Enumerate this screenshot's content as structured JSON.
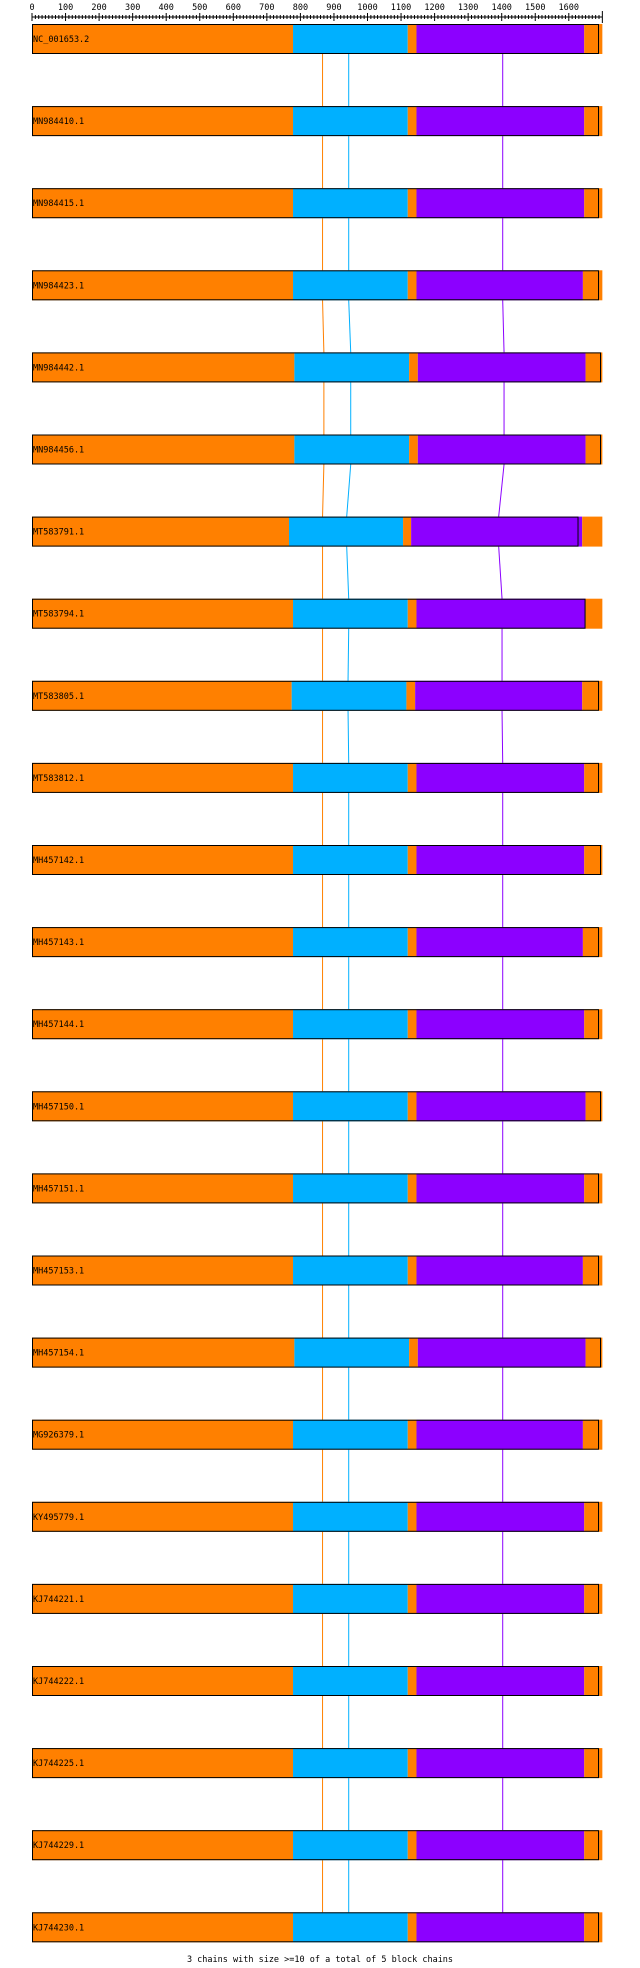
{
  "axis": {
    "min": 0,
    "max": 1700,
    "ticks": [
      "0",
      "100",
      "200",
      "300",
      "400",
      "500",
      "600",
      "700",
      "800",
      "900",
      "1000",
      "1100",
      "1200",
      "1300",
      "1400",
      "1500",
      "1600"
    ]
  },
  "colors": {
    "orange": "#ff8000",
    "blue": "#00b0ff",
    "purple": "#8c00ff",
    "outline": "#000000"
  },
  "rows": [
    {
      "label": "NC_001653.2",
      "bounds": [
        0,
        1690
      ],
      "segs": [
        [
          0,
          778,
          "orange"
        ],
        [
          778,
          1120,
          "blue"
        ],
        [
          1120,
          1146,
          "orange"
        ],
        [
          1146,
          1646,
          "purple"
        ],
        [
          1646,
          1700,
          "orange"
        ]
      ],
      "links": [
        866,
        944,
        1403
      ]
    },
    {
      "label": "MN984410.1",
      "bounds": [
        0,
        1690
      ],
      "segs": [
        [
          0,
          778,
          "orange"
        ],
        [
          778,
          1120,
          "blue"
        ],
        [
          1120,
          1146,
          "orange"
        ],
        [
          1146,
          1646,
          "purple"
        ],
        [
          1646,
          1700,
          "orange"
        ]
      ],
      "links": [
        866,
        944,
        1403
      ]
    },
    {
      "label": "MN984415.1",
      "bounds": [
        0,
        1690
      ],
      "segs": [
        [
          0,
          778,
          "orange"
        ],
        [
          778,
          1120,
          "blue"
        ],
        [
          1120,
          1146,
          "orange"
        ],
        [
          1146,
          1646,
          "purple"
        ],
        [
          1646,
          1700,
          "orange"
        ]
      ],
      "links": [
        866,
        944,
        1403
      ]
    },
    {
      "label": "MN984423.1",
      "bounds": [
        0,
        1690
      ],
      "segs": [
        [
          0,
          778,
          "orange"
        ],
        [
          778,
          1120,
          "blue"
        ],
        [
          1120,
          1146,
          "orange"
        ],
        [
          1146,
          1642,
          "purple"
        ],
        [
          1642,
          1700,
          "orange"
        ]
      ],
      "links": [
        866,
        944,
        1403
      ]
    },
    {
      "label": "MN984442.1",
      "bounds": [
        0,
        1696
      ],
      "segs": [
        [
          0,
          782,
          "orange"
        ],
        [
          782,
          1124,
          "blue"
        ],
        [
          1124,
          1150,
          "orange"
        ],
        [
          1150,
          1650,
          "purple"
        ],
        [
          1650,
          1700,
          "orange"
        ]
      ],
      "links": [
        870,
        950,
        1407
      ]
    },
    {
      "label": "MN984456.1",
      "bounds": [
        0,
        1696
      ],
      "segs": [
        [
          0,
          782,
          "orange"
        ],
        [
          782,
          1124,
          "blue"
        ],
        [
          1124,
          1150,
          "orange"
        ],
        [
          1150,
          1650,
          "purple"
        ],
        [
          1650,
          1700,
          "orange"
        ]
      ],
      "links": [
        870,
        950,
        1407
      ]
    },
    {
      "label": "MT583791.1",
      "bounds": [
        0,
        1629
      ],
      "segs": [
        [
          0,
          766,
          "orange"
        ],
        [
          766,
          1106,
          "blue"
        ],
        [
          1106,
          1130,
          "orange"
        ],
        [
          1130,
          1629,
          "purple"
        ],
        [
          1629,
          1640,
          "purple"
        ],
        [
          1640,
          1700,
          "orange"
        ]
      ],
      "links": [
        866,
        938,
        1391
      ]
    },
    {
      "label": "MT583794.1",
      "bounds": [
        0,
        1650
      ],
      "segs": [
        [
          0,
          778,
          "orange"
        ],
        [
          778,
          1120,
          "blue"
        ],
        [
          1120,
          1146,
          "orange"
        ],
        [
          1146,
          1650,
          "purple"
        ],
        [
          1650,
          1700,
          "orange"
        ]
      ],
      "links": [
        866,
        944,
        1401
      ]
    },
    {
      "label": "MT583805.1",
      "bounds": [
        0,
        1690
      ],
      "segs": [
        [
          0,
          774,
          "orange"
        ],
        [
          774,
          1116,
          "blue"
        ],
        [
          1116,
          1142,
          "orange"
        ],
        [
          1142,
          1640,
          "purple"
        ],
        [
          1640,
          1700,
          "orange"
        ]
      ],
      "links": [
        866,
        942,
        1401
      ]
    },
    {
      "label": "MT583812.1",
      "bounds": [
        0,
        1690
      ],
      "segs": [
        [
          0,
          778,
          "orange"
        ],
        [
          778,
          1120,
          "blue"
        ],
        [
          1120,
          1146,
          "orange"
        ],
        [
          1146,
          1646,
          "purple"
        ],
        [
          1646,
          1700,
          "orange"
        ]
      ],
      "links": [
        866,
        944,
        1403
      ]
    },
    {
      "label": "MH457142.1",
      "bounds": [
        0,
        1696
      ],
      "segs": [
        [
          0,
          778,
          "orange"
        ],
        [
          778,
          1120,
          "blue"
        ],
        [
          1120,
          1146,
          "orange"
        ],
        [
          1146,
          1646,
          "purple"
        ],
        [
          1646,
          1700,
          "orange"
        ]
      ],
      "links": [
        866,
        944,
        1403
      ]
    },
    {
      "label": "MH457143.1",
      "bounds": [
        0,
        1690
      ],
      "segs": [
        [
          0,
          778,
          "orange"
        ],
        [
          778,
          1120,
          "blue"
        ],
        [
          1120,
          1146,
          "orange"
        ],
        [
          1146,
          1642,
          "purple"
        ],
        [
          1642,
          1700,
          "orange"
        ]
      ],
      "links": [
        866,
        944,
        1403
      ]
    },
    {
      "label": "MH457144.1",
      "bounds": [
        0,
        1690
      ],
      "segs": [
        [
          0,
          778,
          "orange"
        ],
        [
          778,
          1120,
          "blue"
        ],
        [
          1120,
          1146,
          "orange"
        ],
        [
          1146,
          1646,
          "purple"
        ],
        [
          1646,
          1700,
          "orange"
        ]
      ],
      "links": [
        866,
        944,
        1403
      ]
    },
    {
      "label": "MH457150.1",
      "bounds": [
        0,
        1696
      ],
      "segs": [
        [
          0,
          778,
          "orange"
        ],
        [
          778,
          1120,
          "blue"
        ],
        [
          1120,
          1146,
          "orange"
        ],
        [
          1146,
          1650,
          "purple"
        ],
        [
          1650,
          1700,
          "orange"
        ]
      ],
      "links": [
        866,
        944,
        1403
      ]
    },
    {
      "label": "MH457151.1",
      "bounds": [
        0,
        1690
      ],
      "segs": [
        [
          0,
          778,
          "orange"
        ],
        [
          778,
          1120,
          "blue"
        ],
        [
          1120,
          1146,
          "orange"
        ],
        [
          1146,
          1646,
          "purple"
        ],
        [
          1646,
          1700,
          "orange"
        ]
      ],
      "links": [
        866,
        944,
        1403
      ]
    },
    {
      "label": "MH457153.1",
      "bounds": [
        0,
        1690
      ],
      "segs": [
        [
          0,
          778,
          "orange"
        ],
        [
          778,
          1120,
          "blue"
        ],
        [
          1120,
          1146,
          "orange"
        ],
        [
          1146,
          1642,
          "purple"
        ],
        [
          1642,
          1700,
          "orange"
        ]
      ],
      "links": [
        866,
        944,
        1403
      ]
    },
    {
      "label": "MH457154.1",
      "bounds": [
        0,
        1696
      ],
      "segs": [
        [
          0,
          782,
          "orange"
        ],
        [
          782,
          1124,
          "blue"
        ],
        [
          1124,
          1150,
          "orange"
        ],
        [
          1150,
          1650,
          "purple"
        ],
        [
          1650,
          1700,
          "orange"
        ]
      ],
      "links": [
        866,
        944,
        1403
      ]
    },
    {
      "label": "MG926379.1",
      "bounds": [
        0,
        1690
      ],
      "segs": [
        [
          0,
          778,
          "orange"
        ],
        [
          778,
          1120,
          "blue"
        ],
        [
          1120,
          1146,
          "orange"
        ],
        [
          1146,
          1642,
          "purple"
        ],
        [
          1642,
          1700,
          "orange"
        ]
      ],
      "links": [
        866,
        944,
        1403
      ]
    },
    {
      "label": "KY495779.1",
      "bounds": [
        0,
        1690
      ],
      "segs": [
        [
          0,
          778,
          "orange"
        ],
        [
          778,
          1120,
          "blue"
        ],
        [
          1120,
          1146,
          "orange"
        ],
        [
          1146,
          1646,
          "purple"
        ],
        [
          1646,
          1700,
          "orange"
        ]
      ],
      "links": [
        866,
        944,
        1403
      ]
    },
    {
      "label": "KJ744221.1",
      "bounds": [
        0,
        1690
      ],
      "segs": [
        [
          0,
          778,
          "orange"
        ],
        [
          778,
          1120,
          "blue"
        ],
        [
          1120,
          1146,
          "orange"
        ],
        [
          1146,
          1646,
          "purple"
        ],
        [
          1646,
          1700,
          "orange"
        ]
      ],
      "links": [
        866,
        944,
        1403
      ]
    },
    {
      "label": "KJ744222.1",
      "bounds": [
        0,
        1690
      ],
      "segs": [
        [
          0,
          778,
          "orange"
        ],
        [
          778,
          1120,
          "blue"
        ],
        [
          1120,
          1146,
          "orange"
        ],
        [
          1146,
          1646,
          "purple"
        ],
        [
          1646,
          1700,
          "orange"
        ]
      ],
      "links": [
        866,
        944,
        1403
      ]
    },
    {
      "label": "KJ744225.1",
      "bounds": [
        0,
        1690
      ],
      "segs": [
        [
          0,
          778,
          "orange"
        ],
        [
          778,
          1120,
          "blue"
        ],
        [
          1120,
          1146,
          "orange"
        ],
        [
          1146,
          1646,
          "purple"
        ],
        [
          1646,
          1700,
          "orange"
        ]
      ],
      "links": [
        866,
        944,
        1403
      ]
    },
    {
      "label": "KJ744229.1",
      "bounds": [
        0,
        1690
      ],
      "segs": [
        [
          0,
          778,
          "orange"
        ],
        [
          778,
          1120,
          "blue"
        ],
        [
          1120,
          1146,
          "orange"
        ],
        [
          1146,
          1646,
          "purple"
        ],
        [
          1646,
          1700,
          "orange"
        ]
      ],
      "links": [
        866,
        944,
        1403
      ]
    },
    {
      "label": "KJ744230.1",
      "bounds": [
        0,
        1690
      ],
      "segs": [
        [
          0,
          778,
          "orange"
        ],
        [
          778,
          1120,
          "blue"
        ],
        [
          1120,
          1146,
          "orange"
        ],
        [
          1146,
          1646,
          "purple"
        ],
        [
          1646,
          1700,
          "orange"
        ]
      ],
      "links": [
        null,
        null,
        null
      ]
    }
  ],
  "footer": "3 chains with size >=10 of a total of 5 block chains"
}
